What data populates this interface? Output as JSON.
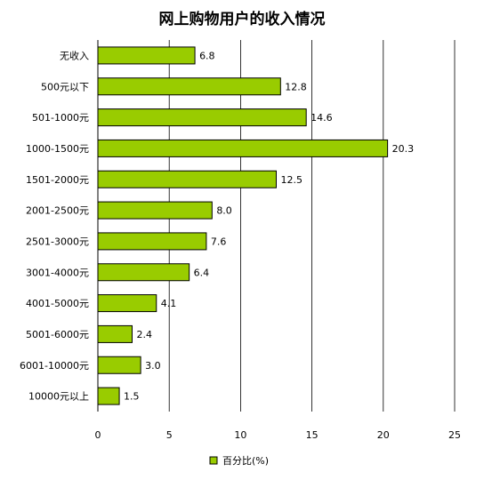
{
  "chart_data": {
    "type": "bar",
    "orientation": "horizontal",
    "title": "网上购物用户的收入情况",
    "categories": [
      "无收入",
      "500元以下",
      "501-1000元",
      "1000-1500元",
      "1501-2000元",
      "2001-2500元",
      "2501-3000元",
      "3001-4000元",
      "4001-5000元",
      "5001-6000元",
      "6001-10000元",
      "10000元以上"
    ],
    "series": [
      {
        "name": "百分比(%)",
        "values": [
          6.8,
          12.8,
          14.6,
          20.3,
          12.5,
          8.0,
          7.6,
          6.4,
          4.1,
          2.4,
          3.0,
          1.5
        ]
      }
    ],
    "data_labels": [
      "6.8",
      "12.8",
      "14.6",
      "20.3",
      "12.5",
      "8.0",
      "7.6",
      "6.4",
      "4.1",
      "2.4",
      "3.0",
      "1.5"
    ],
    "xlim": [
      0,
      25
    ],
    "xticks": [
      "0",
      "5",
      "10",
      "15",
      "20",
      "25"
    ],
    "grid": "vertical",
    "legend": "bottom",
    "colors": {
      "bar": "#99cc00",
      "bar_stroke": "#000000",
      "grid": "#000000"
    }
  }
}
